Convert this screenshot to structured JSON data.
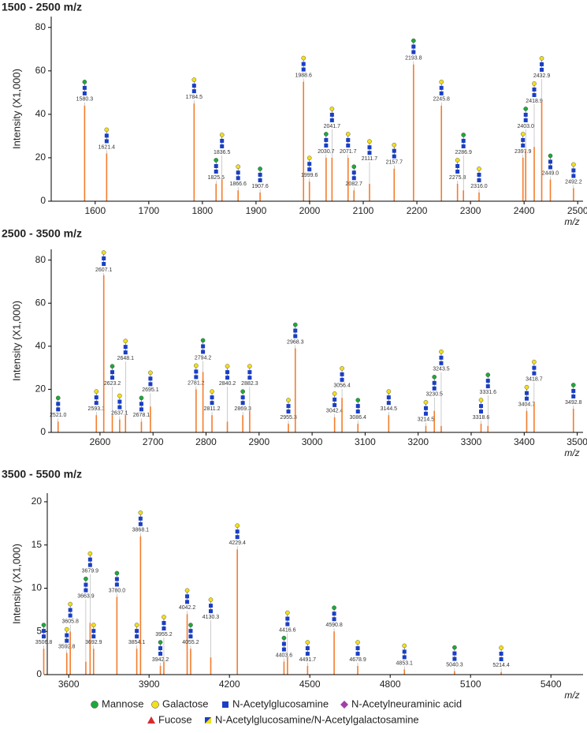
{
  "chart_data": [
    {
      "type": "stem",
      "title": "1500 - 2500 m/z",
      "y_label": "Intensity (X1,000)",
      "x_label": "m/z",
      "color": "#f47c2c",
      "xlim": [
        1518,
        2510
      ],
      "ylim": [
        0,
        85
      ],
      "xticks": [
        1600,
        1700,
        1800,
        1900,
        2000,
        2100,
        2200,
        2300,
        2400,
        2500
      ],
      "yticks": [
        0,
        20,
        40,
        60,
        80
      ],
      "x": [
        1580.3,
        1621.4,
        1784.5,
        1825.5,
        1836.5,
        1866.6,
        1907.6,
        1988.6,
        1999.6,
        2030.7,
        2041.7,
        2071.7,
        2082.7,
        2111.7,
        2157.7,
        2193.8,
        2245.8,
        2275.8,
        2286.9,
        2316.0,
        2397.9,
        2403.0,
        2418.9,
        2432.9,
        2449.0,
        2492.2
      ],
      "peak_labels": [
        "1580.3",
        "1621.4",
        "1784.5",
        "1825.5",
        "1836.5",
        "1866.6",
        "1907.6",
        "1988.6",
        "1999.6",
        "2030.7",
        "2041.7",
        "2071.7",
        "2082.7",
        "2111.7",
        "2157.7",
        "2193.8",
        "2245.8",
        "2275.8",
        "2286.9",
        "2316.0",
        "2397.9",
        "2403.0",
        "2418.9",
        "2432.9",
        "2449.0",
        "2492.2"
      ],
      "values": [
        44,
        22,
        45,
        8,
        10,
        5,
        4,
        55,
        9,
        20,
        20,
        20,
        5,
        8,
        15,
        63,
        44,
        8,
        5,
        4,
        20,
        24,
        25,
        46,
        10,
        6
      ]
    },
    {
      "type": "stem",
      "title": "2500 - 3500 m/z",
      "y_label": "Intensity (X1,000)",
      "x_label": "m/z",
      "color": "#f47c2c",
      "xlim": [
        2508,
        3511
      ],
      "ylim": [
        0,
        85
      ],
      "xticks": [
        2600,
        2700,
        2800,
        2900,
        3000,
        3100,
        3200,
        3300,
        3400,
        3500
      ],
      "yticks": [
        0,
        20,
        40,
        60,
        80
      ],
      "x": [
        2521.0,
        2593.1,
        2607.1,
        2623.2,
        2637.1,
        2648.1,
        2678.1,
        2695.1,
        2781.2,
        2794.2,
        2811.2,
        2840.2,
        2869.3,
        2882.3,
        2955.3,
        2968.3,
        3042.4,
        3056.4,
        3086.4,
        3144.5,
        3214.5,
        3230.5,
        3243.5,
        3318.6,
        3331.6,
        3404.7,
        3418.7,
        3492.8
      ],
      "peak_labels": [
        "2521.0",
        "2593.1",
        "2607.1",
        "2623.2",
        "2637.1",
        "2648.1",
        "2678.1",
        "2695.1",
        "2781.2",
        "2794.2",
        "2811.2",
        "2840.2",
        "2869.3",
        "2882.3",
        "2955.3",
        "2968.3",
        "3042.4",
        "3056.4",
        "3086.4",
        "3144.5",
        "3214.5",
        "3230.5",
        "3243.5",
        "3318.6",
        "3331.6",
        "3404.7",
        "3418.7",
        "3492.8"
      ],
      "values": [
        5,
        8,
        73,
        8,
        6,
        8,
        5,
        12,
        20,
        28,
        8,
        5,
        8,
        10,
        4,
        39,
        7,
        16,
        4,
        8,
        3,
        10,
        3,
        4,
        3,
        10,
        14,
        11
      ]
    },
    {
      "type": "stem",
      "title": "3500 - 5500 m/z",
      "y_label": "Intensity (X1,000)",
      "x_label": "m/z",
      "color": "#f47c2c",
      "xlim": [
        3520,
        5520
      ],
      "ylim": [
        0,
        21
      ],
      "xticks": [
        3600,
        3900,
        4200,
        4500,
        4800,
        5100,
        5400
      ],
      "yticks": [
        0,
        5,
        10,
        15,
        20
      ],
      "x": [
        3506.8,
        3592.8,
        3605.8,
        3663.9,
        3679.9,
        3692.9,
        3780.0,
        3854.1,
        3868.1,
        3942.2,
        3955.2,
        4042.2,
        4055.2,
        4130.3,
        4229.4,
        4403.6,
        4416.6,
        4491.7,
        4590.8,
        4678.9,
        4853.1,
        5040.3,
        5214.4
      ],
      "peak_labels": [
        "3506.8",
        "3592.8",
        "3605.8",
        "3663.9",
        "3679.9",
        "3692.9",
        "3780.0",
        "3854.1",
        "3868.1",
        "3942.2",
        "3955.2",
        "4042.2",
        "4055.2",
        "4130.3",
        "4229.4",
        "4403.6",
        "4416.6",
        "4491.7",
        "4590.8",
        "4678.9",
        "4853.1",
        "5040.3",
        "5214.4"
      ],
      "values": [
        3,
        2.5,
        5,
        1.5,
        6,
        3,
        9,
        3,
        16,
        1,
        1.5,
        7,
        3,
        2,
        14.5,
        1.5,
        2,
        1,
        5,
        1,
        0.6,
        0.4,
        0.3
      ]
    }
  ],
  "legend": [
    {
      "name": "Mannose",
      "color": "#1fa83a",
      "shape": "circle"
    },
    {
      "name": "Galactose",
      "color": "#f2e01a",
      "shape": "circle"
    },
    {
      "name": "N-Acetylglucosamine",
      "color": "#1a3fc4",
      "shape": "square"
    },
    {
      "name": "N-Acetylneuraminic acid",
      "color": "#a23fa6",
      "shape": "diamond"
    },
    {
      "name": "Fucose",
      "color": "#d92b2b",
      "shape": "triangle"
    },
    {
      "name": "N-Acetylglucosamine/N-Acetylgalactosamine",
      "color": "#f2e01a",
      "shape": "half-square"
    }
  ]
}
